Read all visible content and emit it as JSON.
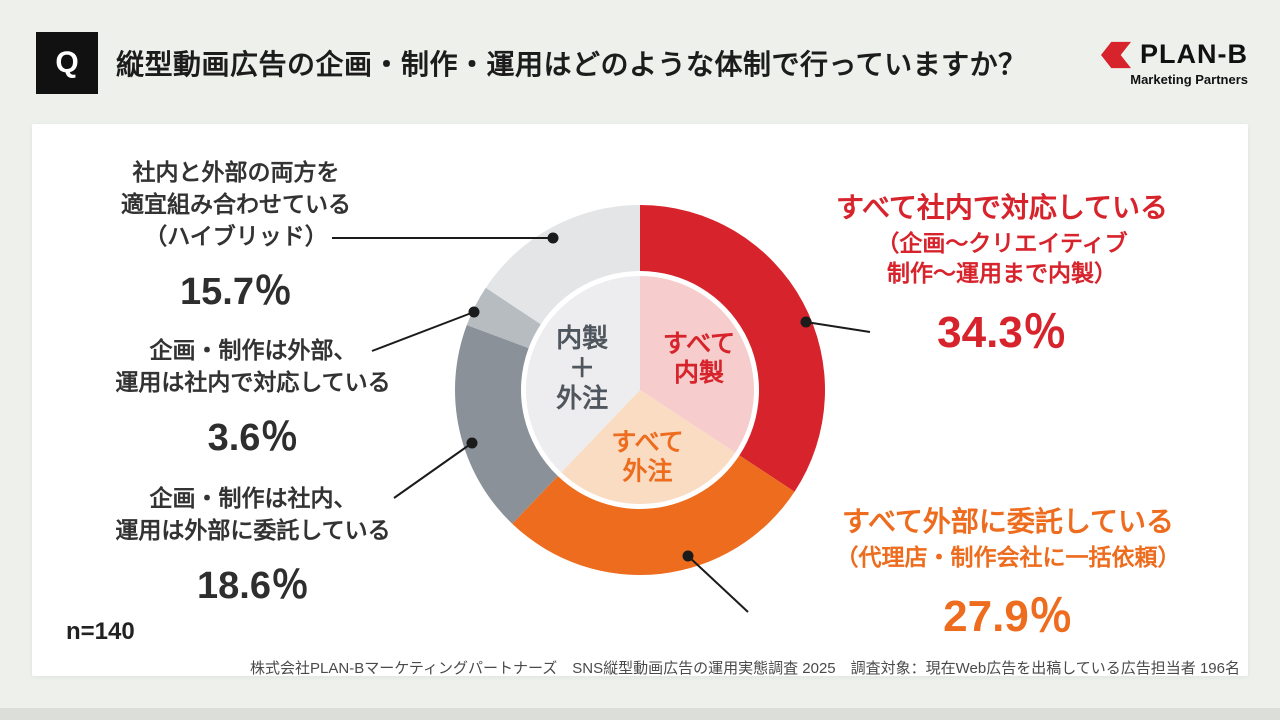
{
  "header": {
    "q": "Q",
    "title": "縦型動画広告の企画・制作・運用はどのような体制で行っていますか？",
    "brand": "PLAN-B",
    "brand_sub": "Marketing Partners"
  },
  "chart_data": {
    "type": "pie",
    "style": "donut",
    "start": "top",
    "direction": "clockwise",
    "title": "縦型動画広告の企画・制作・運用はどのような体制で行っていますか？",
    "segments": [
      {
        "label": "すべて社内で対応している（企画～クリエイティブ制作～運用まで内製）",
        "short_label": "すべて内製",
        "value": 34.3,
        "color": "#d7232b",
        "inner_color": "#f6cdcc",
        "inner_label": "すべて\n内製"
      },
      {
        "label": "すべて外部に委託している（代理店・制作会社に一括依頼）",
        "short_label": "すべて外注",
        "value": 27.9,
        "color": "#ed6c1e",
        "inner_color": "#fadcc2",
        "inner_label": "すべて\n外注"
      },
      {
        "label": "企画・制作は社内、運用は外部に委託している",
        "value": 18.6,
        "color": "#8b9199"
      },
      {
        "label": "企画・制作は外部、運用は社内で対応している",
        "value": 3.6,
        "color": "#b7bcc1"
      },
      {
        "label": "社内と外部の両方を適宜組み合わせている（ハイブリッド）",
        "value": 15.7,
        "color": "#e3e5e7"
      }
    ],
    "center_label": "内製\n＋\n外注",
    "inner_rest_color": "#ededef",
    "n": 140
  },
  "callouts": {
    "right_top": {
      "heading": "すべて社内で対応している",
      "sub": "（企画～クリエイティブ\n制作～運用まで内製）",
      "value": "34.3％",
      "color": "#d7232b"
    },
    "right_bottom": {
      "heading": "すべて外部に委託している",
      "sub": "（代理店・制作会社に一括依頼）",
      "value": "27.9％",
      "color": "#ed6c1e"
    },
    "left_top": {
      "label": "社内と外部の両方を\n適宜組み合わせている\n（ハイブリッド）",
      "value": "15.7％"
    },
    "left_mid": {
      "label": "企画・制作は外部、\n運用は社内で対応している",
      "value": "3.6％"
    },
    "left_bottom": {
      "label": "企画・制作は社内、\n運用は外部に委託している",
      "value": "18.6％"
    }
  },
  "footer": {
    "sample": "n=140",
    "source": "株式会社PLAN-Bマーケティングパートナーズ　SNS縦型動画広告の運用実態調査 2025　調査対象：現在Web広告を出稿している広告担当者 196名"
  }
}
